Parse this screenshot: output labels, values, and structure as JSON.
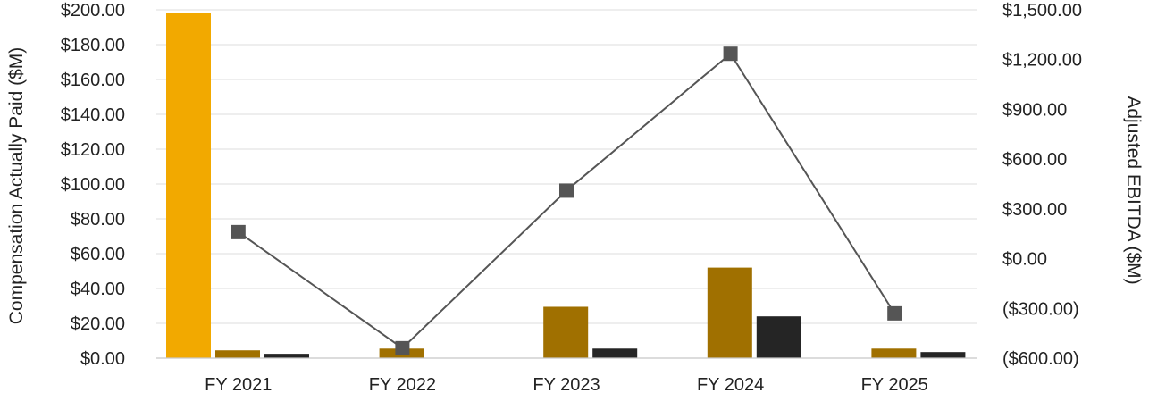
{
  "chart_data": {
    "type": "bar",
    "categories": [
      "FY 2021",
      "FY 2022",
      "FY 2023",
      "FY 2024",
      "FY 2025"
    ],
    "series": [
      {
        "type": "bar",
        "axis": "left",
        "color": "#F2A900",
        "values": [
          198,
          0,
          0,
          0,
          0
        ]
      },
      {
        "type": "bar",
        "axis": "left",
        "color": "#A07000",
        "values": [
          4.5,
          5.5,
          29.5,
          52,
          5.5
        ]
      },
      {
        "type": "bar",
        "axis": "left",
        "color": "#252525",
        "values": [
          2.5,
          0,
          5.5,
          24,
          3.5
        ]
      },
      {
        "type": "line",
        "axis": "right",
        "color": "#555555",
        "marker": "square",
        "values": [
          160,
          -540,
          410,
          1235,
          -330
        ]
      }
    ],
    "ylabel": "Compensation Actually Paid ($M)",
    "ylabel_right": "Adjusted EBITDA ($M)",
    "ylim": [
      0,
      200
    ],
    "ylim_right": [
      -600,
      1500
    ],
    "yticks": [
      "$0.00",
      "$20.00",
      "$40.00",
      "$60.00",
      "$80.00",
      "$100.00",
      "$120.00",
      "$140.00",
      "$160.00",
      "$180.00",
      "$200.00"
    ],
    "yticks_right": [
      "($600.00)",
      "($300.00)",
      "$0.00",
      "$300.00",
      "$600.00",
      "$900.00",
      "$1,200.00",
      "$1,500.00"
    ],
    "grid": true,
    "legend": "none"
  }
}
